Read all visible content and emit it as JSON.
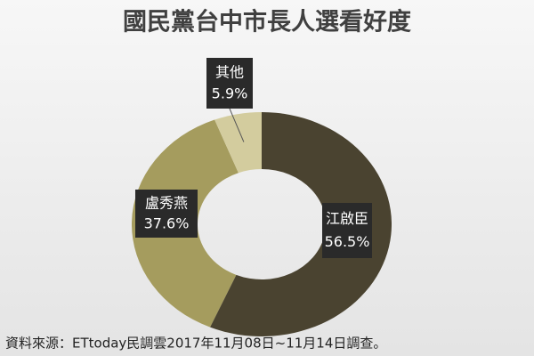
{
  "chart_data": {
    "type": "donut",
    "title": "國民黨台中市長人選看好度",
    "categories": [
      "江啟臣",
      "盧秀燕",
      "其他"
    ],
    "values": [
      56.5,
      37.6,
      5.9
    ],
    "value_labels": [
      "56.5%",
      "37.6%",
      "5.9%"
    ],
    "colors": [
      "#4a4330",
      "#a59c5e",
      "#d3cc9e"
    ],
    "source": "資料來源：ETtoday民調雲2017年11月08日~11月14日調查。"
  }
}
